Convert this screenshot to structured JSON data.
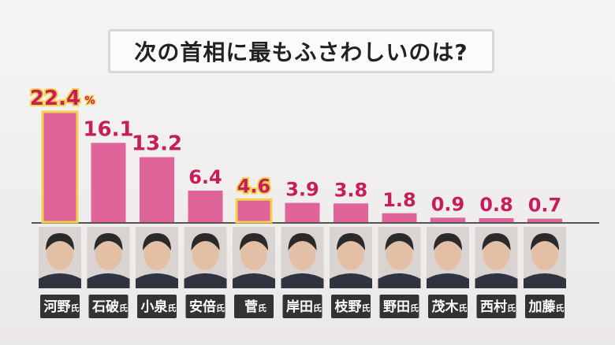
{
  "chart_data": {
    "type": "bar",
    "title": "次の首相に最もふさわしいのは?",
    "categories": [
      "河野氏",
      "石破氏",
      "小泉氏",
      "安倍氏",
      "菅氏",
      "岸田氏",
      "枝野氏",
      "野田氏",
      "茂木氏",
      "西村氏",
      "加藤氏"
    ],
    "values": [
      22.4,
      16.1,
      13.2,
      6.4,
      4.6,
      3.9,
      3.8,
      1.8,
      0.9,
      0.8,
      0.7
    ],
    "value_labels": [
      "22.4",
      "16.1",
      "13.2",
      "6.4",
      "4.6",
      "3.9",
      "3.8",
      "1.8",
      "0.9",
      "0.8",
      "0.7"
    ],
    "unit": "%",
    "highlighted": [
      "河野氏",
      "菅氏"
    ],
    "ylim": [
      0,
      22.4
    ],
    "colors": {
      "bar": "#e0649a",
      "highlight_outline": "#f2d24a",
      "value_text": "#c81d5c",
      "name_tag": "#333333",
      "baseline": "#555555"
    }
  }
}
